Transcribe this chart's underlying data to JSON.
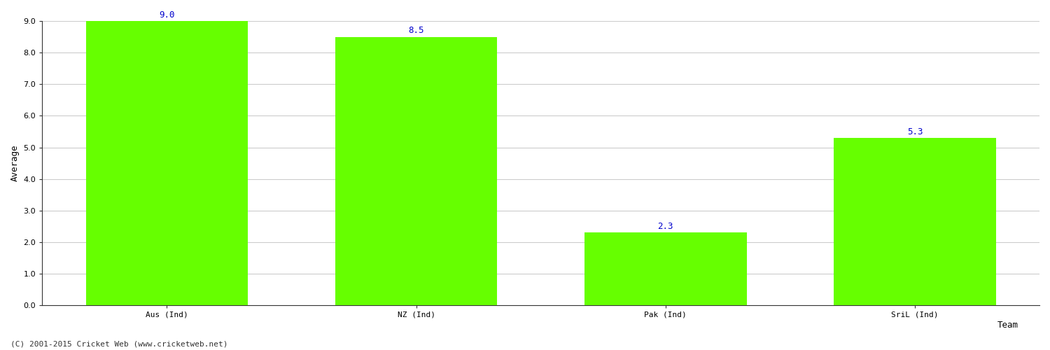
{
  "categories": [
    "Aus (Ind)",
    "NZ (Ind)",
    "Pak (Ind)",
    "SriL (Ind)"
  ],
  "values": [
    9.0,
    8.5,
    2.3,
    5.3
  ],
  "bar_color": "#66ff00",
  "bar_edge_color": "#66ff00",
  "xlabel": "Team",
  "ylabel": "Average",
  "ylim": [
    0.0,
    9.0
  ],
  "yticks": [
    0.0,
    1.0,
    2.0,
    3.0,
    4.0,
    5.0,
    6.0,
    7.0,
    8.0,
    9.0
  ],
  "value_color": "#0000cc",
  "value_fontsize": 9,
  "grid_color": "#cccccc",
  "background_color": "#ffffff",
  "copyright_text": "(C) 2001-2015 Cricket Web (www.cricketweb.net)",
  "copyright_fontsize": 8,
  "axis_label_fontsize": 9,
  "tick_fontsize": 8,
  "xlabel_fontsize": 9,
  "bar_width": 0.65
}
